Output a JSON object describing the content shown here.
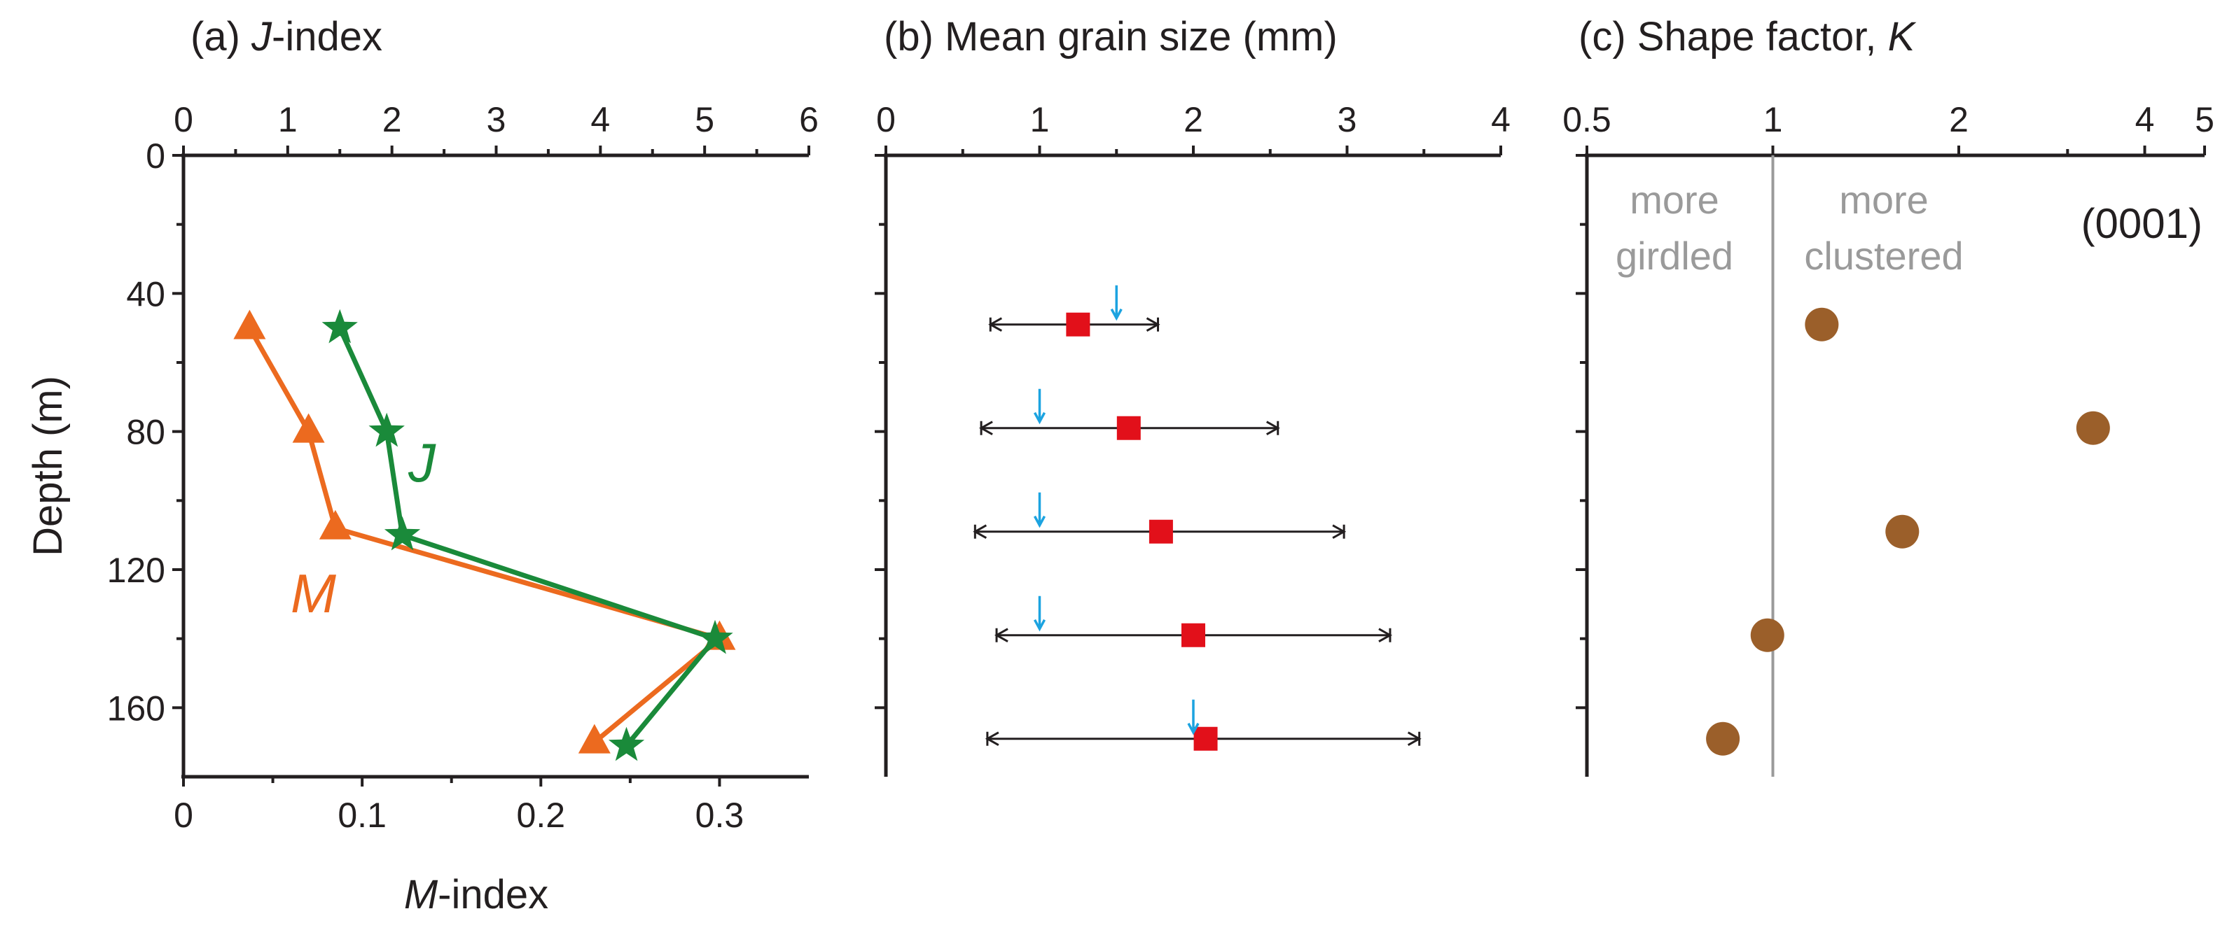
{
  "figure": {
    "chart_data": [
      {
        "panel": "a",
        "type": "line",
        "title": "(a) J-index",
        "title_prefix": "(a) ",
        "title_italic": "J",
        "title_suffix": "-index",
        "ylabel": "Depth (m)",
        "xlabel_italic": "M",
        "xlabel_suffix": "-index",
        "ylim": [
          0,
          180
        ],
        "y_inverted": true,
        "yticks": [
          0,
          40,
          80,
          120,
          160
        ],
        "top_axis": {
          "label": "J-index",
          "range": [
            0,
            6
          ],
          "ticks": [
            0,
            1,
            2,
            3,
            4,
            5,
            6
          ]
        },
        "bottom_axis": {
          "label": "M-index",
          "range": [
            0,
            0.35
          ],
          "ticks": [
            0,
            0.1,
            0.2,
            0.3
          ],
          "tick_labels": [
            "0",
            "0.1",
            "0.2",
            "0.3"
          ]
        },
        "series": [
          {
            "name": "J",
            "label": "J",
            "axis": "top",
            "marker": "star",
            "color": "#1a8a3a",
            "points": [
              {
                "depth": 50,
                "value": 1.5
              },
              {
                "depth": 80,
                "value": 1.95
              },
              {
                "depth": 110,
                "value": 2.1
              },
              {
                "depth": 140,
                "value": 5.1
              },
              {
                "depth": 171,
                "value": 4.25
              }
            ]
          },
          {
            "name": "M",
            "label": "M",
            "axis": "bottom",
            "marker": "triangle",
            "color": "#ec6a1f",
            "points": [
              {
                "depth": 50,
                "value": 0.037
              },
              {
                "depth": 80,
                "value": 0.07
              },
              {
                "depth": 108,
                "value": 0.085
              },
              {
                "depth": 140,
                "value": 0.3
              },
              {
                "depth": 170,
                "value": 0.23
              }
            ]
          }
        ]
      },
      {
        "panel": "b",
        "type": "scatter",
        "title": "(b) Mean grain size (mm)",
        "ylim": [
          0,
          180
        ],
        "y_inverted": true,
        "yticks": [
          0,
          40,
          80,
          120,
          160
        ],
        "xlim": [
          0,
          4
        ],
        "xticks": [
          0,
          1,
          2,
          3,
          4
        ],
        "marker_color": "#e2101a",
        "arrow_color": "#1ca3e0",
        "rows": [
          {
            "depth": 49,
            "mean": 1.25,
            "low": 0.68,
            "high": 1.77,
            "arrow": 1.5
          },
          {
            "depth": 79,
            "mean": 1.58,
            "low": 0.62,
            "high": 2.55,
            "arrow": 1.0
          },
          {
            "depth": 109,
            "mean": 1.79,
            "low": 0.58,
            "high": 2.98,
            "arrow": 1.0
          },
          {
            "depth": 139,
            "mean": 2.0,
            "low": 0.72,
            "high": 3.28,
            "arrow": 1.0
          },
          {
            "depth": 169,
            "mean": 2.08,
            "low": 0.66,
            "high": 3.47,
            "arrow": 2.0
          }
        ]
      },
      {
        "panel": "c",
        "type": "scatter",
        "title": "(c) Shape factor, K",
        "title_prefix": "(c) Shape factor, ",
        "title_italic": "K",
        "ylim": [
          0,
          180
        ],
        "y_inverted": true,
        "yticks": [
          0,
          40,
          80,
          120,
          160
        ],
        "x_scale": "log",
        "xlim": [
          0.5,
          5
        ],
        "xticks": [
          0.5,
          1,
          2,
          4,
          5
        ],
        "tick_labels": [
          "0.5",
          "1",
          "2",
          "4",
          "5"
        ],
        "reference_line": 1,
        "marker_color": "#9b5f2a",
        "annotations": {
          "left_line1": "more",
          "left_line2": "girdled",
          "right_line1": "more",
          "right_line2": "clustered",
          "plane": "(0001)"
        },
        "points": [
          {
            "depth": 49,
            "K": 1.2
          },
          {
            "depth": 79,
            "K": 3.3
          },
          {
            "depth": 109,
            "K": 1.62
          },
          {
            "depth": 139,
            "K": 0.98
          },
          {
            "depth": 169,
            "K": 0.83
          }
        ]
      }
    ]
  }
}
